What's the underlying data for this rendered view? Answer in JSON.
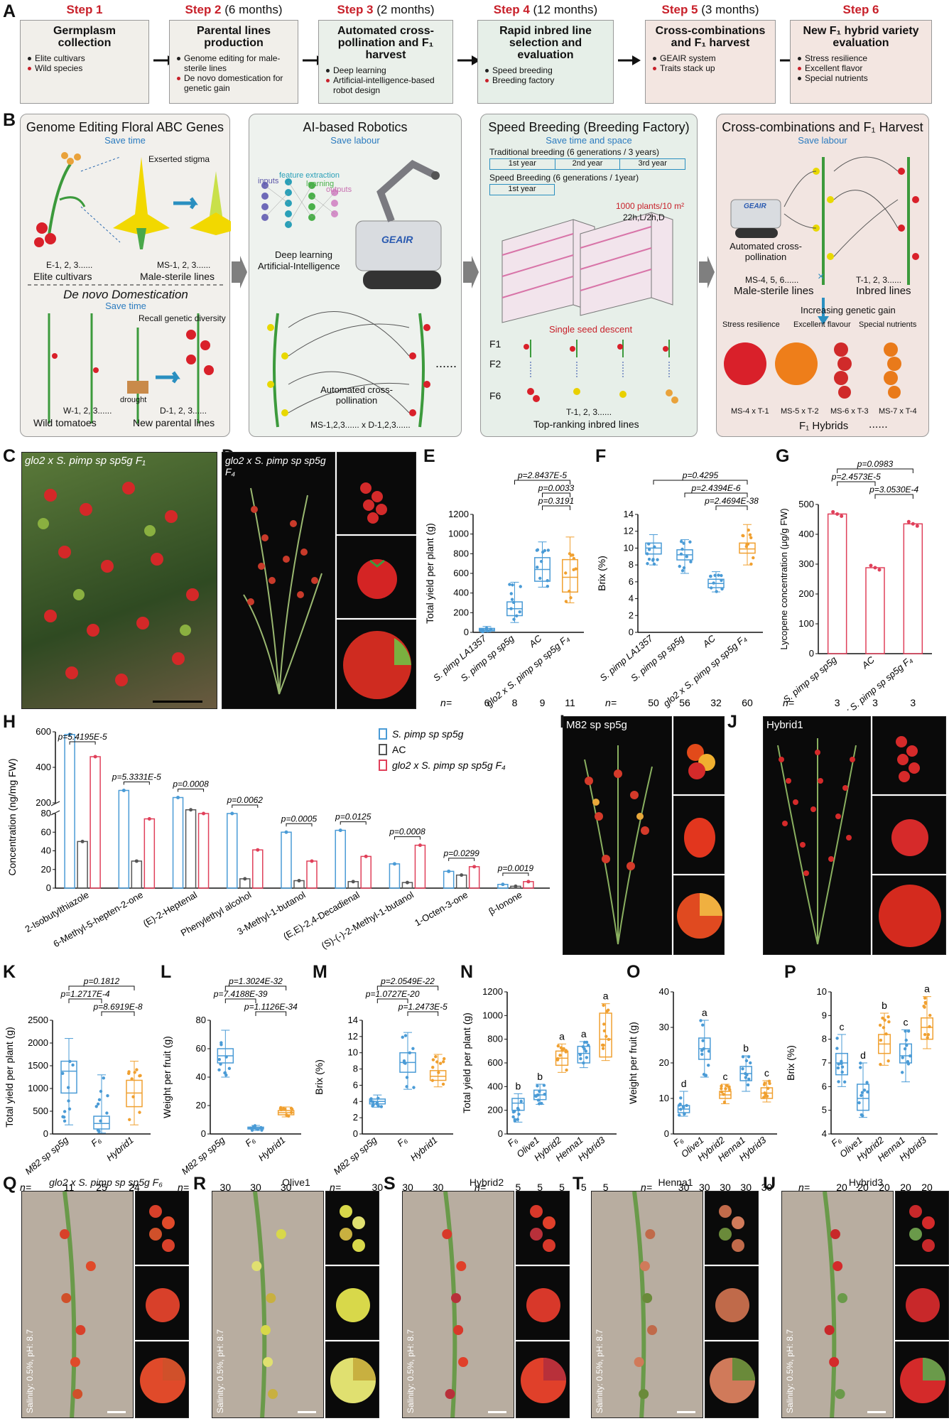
{
  "panel_labels": {
    "A": "A",
    "B": "B",
    "C": "C",
    "D": "D",
    "E": "E",
    "F": "F",
    "G": "G",
    "H": "H",
    "I": "I",
    "J": "J",
    "K": "K",
    "L": "L",
    "M": "M",
    "N": "N",
    "O": "O",
    "P": "P",
    "Q": "Q",
    "R": "R",
    "S": "S",
    "T": "T",
    "U": "U"
  },
  "steps": [
    {
      "step": "Step 1",
      "dur": "",
      "title": "Germplasm collection",
      "items": [
        {
          "text": "Elite cultivars",
          "color": "#222222"
        },
        {
          "text": "Wild species",
          "color": "#c8202a"
        }
      ],
      "bg": "#f1efea"
    },
    {
      "step": "Step 2",
      "dur": "(6 months)",
      "title": "Parental lines production",
      "items": [
        {
          "text": "Genome editing for male-sterile lines",
          "color": "#222222"
        },
        {
          "text": "De novo domestication for genetic gain",
          "color": "#c8202a"
        }
      ],
      "bg": "#f1efea"
    },
    {
      "step": "Step 3",
      "dur": "(2 months)",
      "title": "Automated cross-pollination and F₁ harvest",
      "items": [
        {
          "text": "Deep learning",
          "color": "#222222"
        },
        {
          "text": "Artificial-intelligence-based robot design",
          "color": "#c8202a"
        }
      ],
      "bg": "#eaf0ea"
    },
    {
      "step": "Step 4",
      "dur": "(12 months)",
      "title": "Rapid inbred line selection and evaluation",
      "items": [
        {
          "text": "Speed breeding",
          "color": "#222222"
        },
        {
          "text": "Breeding factory",
          "color": "#c8202a"
        }
      ],
      "bg": "#e6efe8"
    },
    {
      "step": "Step 5",
      "dur": "(3 months)",
      "title": "Cross-combinations and F₁ harvest",
      "items": [
        {
          "text": "GEAIR system",
          "color": "#222222"
        },
        {
          "text": "Traits stack up",
          "color": "#c8202a"
        }
      ],
      "bg": "#f3e6e1"
    },
    {
      "step": "Step 6",
      "dur": "",
      "title": "New F₁ hybrid variety evaluation",
      "items": [
        {
          "text": "Stress resilience",
          "color": "#222222"
        },
        {
          "text": "Excellent flavor",
          "color": "#c8202a"
        },
        {
          "text": "Special nutrients",
          "color": "#222222"
        }
      ],
      "bg": "#f3e6e1"
    }
  ],
  "b_panels": {
    "p1": {
      "title": "Genome Editing Floral ABC Genes",
      "sub": "Save time",
      "exserted": "Exserted stigma",
      "e_label": "E-1, 2, 3......",
      "elite": "Elite cultivars",
      "ms_label": "MS-1, 2, 3......",
      "ms": "Male-sterile lines",
      "denovo": "De novo Domestication",
      "sub2": "Save time",
      "recall": "Recall genetic diversity",
      "w_label": "W-1, 2, 3......",
      "wild": "Wild tomatoes",
      "drought": "drought",
      "d_label": "D-1, 2, 3......",
      "newp": "New parental lines"
    },
    "p2": {
      "title": "AI-based Robotics",
      "sub": "Save labour",
      "inputs": "inputs",
      "fe": "feature extraction",
      "learning": "learning",
      "outputs": "outputs",
      "dl": "Deep learning",
      "ai": "Artificial-Intelligence",
      "geair": "GEAIR",
      "auto": "Automated cross-pollination",
      "ms_d": "MS-1,2,3...... x D-1,2,3......",
      "dots": "......"
    },
    "p3": {
      "title": "Speed Breeding (Breeding Factory)",
      "sub": "Save time and space",
      "trad": "Traditional breeding (6 generations / 3 years)",
      "y1": "1st year",
      "y2": "2nd year",
      "y3": "3rd year",
      "speed": "Speed Breeding (6 generations / 1year)",
      "sy1": "1st year",
      "plants": "1000 plants/10 m²",
      "light": "22h,L/2h,D",
      "ssd": "Single seed descent",
      "f1": "F1",
      "f2": "F2",
      "f6": "F6",
      "t_label": "T-1, 2, 3......",
      "top": "Top-ranking inbred lines"
    },
    "p4": {
      "title": "Cross-combinations and F₁ Harvest",
      "sub": "Save labour",
      "geair": "GEAIR",
      "auto": "Automated cross-pollination",
      "ms456": "MS-4, 5, 6......",
      "t123": "T-1, 2, 3......",
      "msl": "Male-sterile lines",
      "inb": "Inbred lines",
      "inc": "Increasing genetic gain",
      "stress": "Stress resilience",
      "flav": "Excellent flavour",
      "nut": "Special nutrients",
      "h1": "MS-4 x T-1",
      "h2": "MS-5 x T-2",
      "h3": "MS-6 x T-3",
      "h4": "MS-7 x T-4",
      "f1h": "F₁ Hybrids",
      "dots": "......"
    }
  },
  "photos": {
    "C": "glo2 x S. pimp sp sp5g F₁",
    "D": "glo2 x S. pimp sp sp5g F₄",
    "I": "M82 sp sp5g",
    "J": "Hybrid1",
    "Q": "glo2 x S. pimp sp sp5g F₆",
    "R": "Olive1",
    "S": "Hybrid2",
    "T": "Henna1",
    "U": "Hybrid3",
    "salinity": "Salinity: 0.5%, pH: 8.7"
  },
  "n_label": "n=",
  "chart_data": [
    {
      "id": "E",
      "type": "box",
      "ylabel": "Total yield per plant (g)",
      "ylim": [
        0,
        1200
      ],
      "yticks": [
        0,
        200,
        400,
        600,
        800,
        1000,
        1200
      ],
      "categories": [
        "S. pimp LA1357",
        "S. pimp sp sp5g",
        "AC",
        "glo2 x S. pimp sp sp5g F₄"
      ],
      "colors": [
        "#4a9bd6",
        "#4a9bd6",
        "#4a9bd6",
        "#f0a030"
      ],
      "medians": [
        25,
        240,
        640,
        560
      ],
      "q1": [
        15,
        170,
        520,
        410
      ],
      "q3": [
        40,
        310,
        760,
        740
      ],
      "min": [
        5,
        100,
        460,
        300
      ],
      "max": [
        60,
        510,
        920,
        970
      ],
      "n": [
        "6",
        "8",
        "9",
        "11"
      ],
      "pvalues": [
        {
          "p": "p=2.8437E-5",
          "from": 1,
          "to": 3
        },
        {
          "p": "p=0.0033",
          "from": 2,
          "to": 3
        },
        {
          "p": "p=0.3191",
          "from": 2,
          "to": 3
        }
      ]
    },
    {
      "id": "F",
      "type": "box",
      "ylabel": "Brix (%)",
      "ylim": [
        0,
        14
      ],
      "yticks": [
        0,
        2,
        4,
        6,
        8,
        10,
        12,
        14
      ],
      "categories": [
        "S. pimp LA1357",
        "S. pimp sp sp5g",
        "AC",
        "glo2 x S. pimp sp sp5g F₄"
      ],
      "colors": [
        "#4a9bd6",
        "#4a9bd6",
        "#4a9bd6",
        "#f0a030"
      ],
      "medians": [
        10,
        9.2,
        5.8,
        9.9
      ],
      "q1": [
        9.3,
        8.6,
        5.3,
        9.4
      ],
      "q3": [
        10.6,
        9.8,
        6.3,
        10.6
      ],
      "min": [
        8,
        7,
        4.8,
        8
      ],
      "max": [
        11.6,
        11,
        7.2,
        12.8
      ],
      "n": [
        "50",
        "56",
        "32",
        "60"
      ],
      "pvalues": [
        {
          "p": "p=0.4295",
          "from": 0,
          "to": 3
        },
        {
          "p": "p=2.4394E-6",
          "from": 1,
          "to": 3
        },
        {
          "p": "p=2.4694E-38",
          "from": 2,
          "to": 3
        }
      ]
    },
    {
      "id": "G",
      "type": "bar",
      "ylabel": "Lycopene concentration (μg/g FW)",
      "ylim": [
        0,
        500
      ],
      "yticks": [
        0,
        100,
        200,
        300,
        400,
        500
      ],
      "categories": [
        "S. pimp sp sp5g",
        "AC",
        "glo2 x S. pimp sp sp5g F₄"
      ],
      "values": [
        468,
        288,
        435
      ],
      "colors": [
        "#e0405a",
        "#e0405a",
        "#e0405a"
      ],
      "n": [
        "3",
        "3",
        "3"
      ],
      "pvalues": [
        {
          "p": "p=0.0983",
          "from": 0,
          "to": 2
        },
        {
          "p": "p=2.4573E-5",
          "from": 0,
          "to": 1
        },
        {
          "p": "p=3.0530E-4",
          "from": 1,
          "to": 2
        }
      ]
    },
    {
      "id": "H",
      "type": "grouped_bar",
      "ylabel": "Concentration (ng/mg FW)",
      "series": [
        {
          "name": "S. pimp sp sp5g",
          "color": "#4a9bd6",
          "values": [
            585,
            270,
            230,
            80,
            60,
            62,
            26,
            18,
            4
          ]
        },
        {
          "name": "AC",
          "color": "#555555",
          "values": [
            50,
            29,
            84,
            10,
            8,
            7,
            6,
            14,
            2
          ]
        },
        {
          "name": "glo2 x S. pimp sp sp5g F₄",
          "color": "#e0405a",
          "values": [
            460,
            110,
            140,
            41,
            29,
            34,
            46,
            23,
            7
          ]
        }
      ],
      "categories": [
        "2-Isobutylthiazole",
        "6-Methyl-5-hepten-2-one",
        "(E)-2-Heptenal",
        "Phenylethyl alcohol",
        "3-Methyl-1-butanol",
        "(E,E)-2,4-Decadienal",
        "(S)-(-)-2-Methyl-1-butanol",
        "1-Octen-3-one",
        "β-Ionone"
      ],
      "pvalues": [
        "p=5.4195E-5",
        "p=5.3331E-5",
        "p=0.0008",
        "p=0.0062",
        "p=0.0005",
        "p=0.0125",
        "p=0.0008",
        "p=0.0299",
        "p=0.0019"
      ]
    },
    {
      "id": "K",
      "type": "box",
      "ylabel": "Total yield per plant (g)",
      "ylim": [
        0,
        2500
      ],
      "yticks": [
        0,
        500,
        1000,
        1500,
        2000,
        2500
      ],
      "categories": [
        "M82 sp sp5g",
        "F₆",
        "Hybrid1"
      ],
      "colors": [
        "#4a9bd6",
        "#4a9bd6",
        "#f0a030"
      ],
      "medians": [
        1380,
        230,
        900
      ],
      "q1": [
        900,
        110,
        600
      ],
      "q3": [
        1600,
        390,
        1180
      ],
      "min": [
        200,
        20,
        200
      ],
      "max": [
        2100,
        1300,
        1600
      ],
      "n": [
        "11",
        "25",
        "24"
      ],
      "pvalues": [
        {
          "p": "p=0.1812",
          "from": 0,
          "to": 2
        },
        {
          "p": "p=1.2717E-4",
          "from": 0,
          "to": 1
        },
        {
          "p": "p=8.6919E-8",
          "from": 1,
          "to": 2
        }
      ]
    },
    {
      "id": "L",
      "type": "box",
      "ylabel": "Weight per fruit (g)",
      "ylim": [
        0,
        80
      ],
      "yticks": [
        0,
        20,
        40,
        60,
        80
      ],
      "categories": [
        "M82 sp sp5g",
        "F₆",
        "Hybrid1"
      ],
      "colors": [
        "#4a9bd6",
        "#4a9bd6",
        "#f0a030"
      ],
      "medians": [
        55,
        4,
        15
      ],
      "q1": [
        50,
        3.5,
        13.5
      ],
      "q3": [
        60,
        4.8,
        16.5
      ],
      "min": [
        40,
        2.5,
        12
      ],
      "max": [
        73,
        6,
        19
      ],
      "n": [
        "30",
        "30",
        "30"
      ],
      "pvalues": [
        {
          "p": "p=1.3024E-32",
          "from": 0,
          "to": 2
        },
        {
          "p": "p=7.4188E-39",
          "from": 0,
          "to": 1
        },
        {
          "p": "p=1.1126E-34",
          "from": 1,
          "to": 2
        }
      ]
    },
    {
      "id": "M",
      "type": "box",
      "ylabel": "Brix (%)",
      "ylim": [
        0,
        14
      ],
      "yticks": [
        0,
        2,
        4,
        6,
        8,
        10,
        12,
        14
      ],
      "categories": [
        "M82 sp sp5g",
        "F₆",
        "Hybrid1"
      ],
      "colors": [
        "#4a9bd6",
        "#4a9bd6",
        "#f0a030"
      ],
      "medians": [
        4,
        8.8,
        7.1
      ],
      "q1": [
        3.7,
        7.6,
        6.6
      ],
      "q3": [
        4.3,
        10,
        7.8
      ],
      "min": [
        3.3,
        5.5,
        5.8
      ],
      "max": [
        4.8,
        12.5,
        9.8
      ],
      "n": [
        "30",
        "30",
        "30"
      ],
      "pvalues": [
        {
          "p": "p=2.0549E-22",
          "from": 0,
          "to": 2
        },
        {
          "p": "p=1.0727E-20",
          "from": 0,
          "to": 1
        },
        {
          "p": "p=1.2473E-5",
          "from": 1,
          "to": 2
        }
      ]
    },
    {
      "id": "N",
      "type": "box",
      "ylabel": "Total yield per plant (g)",
      "ylim": [
        0,
        1200
      ],
      "yticks": [
        0,
        200,
        400,
        600,
        800,
        1000,
        1200
      ],
      "categories": [
        "F₆",
        "Olive1",
        "Hybrid2",
        "Henna1",
        "Hybrid3"
      ],
      "colors": [
        "#4a9bd6",
        "#4a9bd6",
        "#f0a030",
        "#4a9bd6",
        "#f0a030"
      ],
      "medians": [
        260,
        330,
        640,
        680,
        800
      ],
      "q1": [
        200,
        290,
        580,
        600,
        650
      ],
      "q3": [
        300,
        370,
        700,
        740,
        1020
      ],
      "min": [
        100,
        250,
        520,
        560,
        620
      ],
      "max": [
        340,
        420,
        760,
        780,
        1100
      ],
      "n": [
        "5",
        "5",
        "5",
        "5",
        "5"
      ],
      "letters": [
        "b",
        "b",
        "a",
        "a",
        "a"
      ]
    },
    {
      "id": "O",
      "type": "box",
      "ylabel": "Weight per fruit (g)",
      "ylim": [
        0,
        40
      ],
      "yticks": [
        0,
        10,
        20,
        30,
        40
      ],
      "categories": [
        "F₆",
        "Olive1",
        "Hybrid2",
        "Henna1",
        "Hybrid3"
      ],
      "colors": [
        "#4a9bd6",
        "#4a9bd6",
        "#f0a030",
        "#4a9bd6",
        "#f0a030"
      ],
      "medians": [
        7,
        24,
        11,
        17,
        11.5
      ],
      "q1": [
        6,
        21,
        10,
        15,
        10
      ],
      "q3": [
        8,
        27,
        12,
        19,
        13
      ],
      "min": [
        5,
        16,
        8.5,
        12,
        9
      ],
      "max": [
        12,
        32,
        14,
        22,
        15
      ],
      "n": [
        "30",
        "30",
        "30",
        "30",
        "30"
      ],
      "letters": [
        "d",
        "a",
        "c",
        "b",
        "c"
      ]
    },
    {
      "id": "P",
      "type": "box",
      "ylabel": "Brix (%)",
      "ylim": [
        4,
        10
      ],
      "yticks": [
        4,
        5,
        6,
        7,
        8,
        9,
        10
      ],
      "categories": [
        "F₆",
        "Olive1",
        "Hybrid2",
        "Henna1",
        "Hybrid3"
      ],
      "colors": [
        "#4a9bd6",
        "#4a9bd6",
        "#f0a030",
        "#4a9bd6",
        "#f0a030"
      ],
      "medians": [
        7,
        5.5,
        7.8,
        7.3,
        8.5
      ],
      "q1": [
        6.5,
        5,
        7.4,
        7,
        8
      ],
      "q3": [
        7.4,
        6.1,
        8.2,
        7.8,
        8.9
      ],
      "min": [
        6,
        4.7,
        6.9,
        6.2,
        7.6
      ],
      "max": [
        8.2,
        7,
        9.1,
        8.4,
        9.8
      ],
      "n": [
        "20",
        "20",
        "20",
        "20",
        "20"
      ],
      "letters": [
        "c",
        "d",
        "b",
        "c",
        "a"
      ]
    }
  ]
}
